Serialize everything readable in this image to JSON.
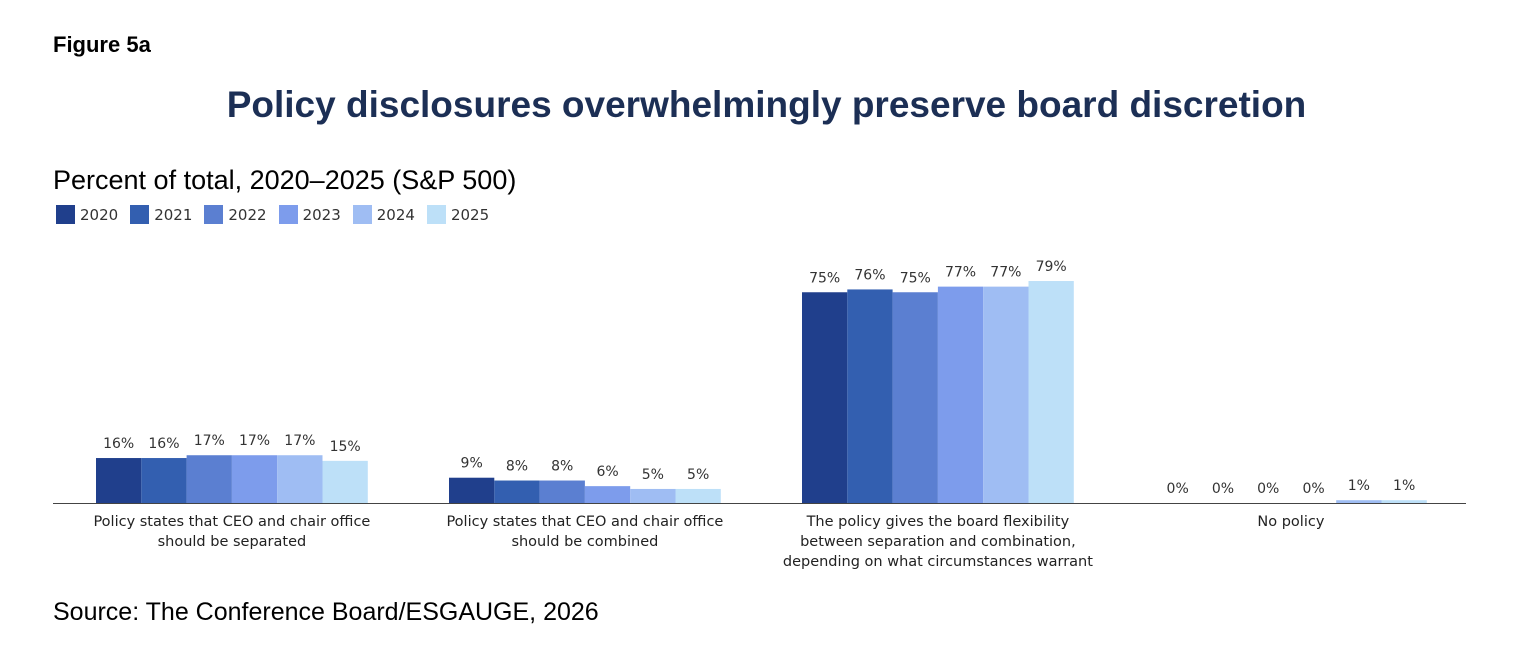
{
  "figure_label": "Figure 5a",
  "title": "Policy disclosures overwhelmingly preserve board discretion",
  "subtitle": "Percent of total, 2020–2025 (S&P 500)",
  "source": "Source: The Conference Board/ESGAUGE, 2026",
  "chart_data": {
    "type": "bar",
    "categories": [
      [
        "Policy states that CEO and chair office",
        "should be separated"
      ],
      [
        "Policy states that CEO and chair office",
        "should be combined"
      ],
      [
        "The policy gives the board flexibility",
        "between separation and combination,",
        "depending on what circumstances warrant"
      ],
      [
        "No policy"
      ]
    ],
    "series": [
      {
        "name": "2020",
        "color": "#203f8c",
        "values": [
          16,
          9,
          75,
          0
        ]
      },
      {
        "name": "2021",
        "color": "#335fb0",
        "values": [
          16,
          8,
          76,
          0
        ]
      },
      {
        "name": "2022",
        "color": "#5b7fd1",
        "values": [
          17,
          8,
          75,
          0
        ]
      },
      {
        "name": "2023",
        "color": "#7d9cec",
        "values": [
          17,
          6,
          77,
          0
        ]
      },
      {
        "name": "2024",
        "color": "#9fbdf3",
        "values": [
          17,
          5,
          77,
          1
        ]
      },
      {
        "name": "2025",
        "color": "#bde0f8",
        "values": [
          15,
          5,
          79,
          1
        ]
      }
    ],
    "value_suffix": "%",
    "ylim": [
      0,
      100
    ],
    "legend_position": "top-left",
    "grid": false
  }
}
